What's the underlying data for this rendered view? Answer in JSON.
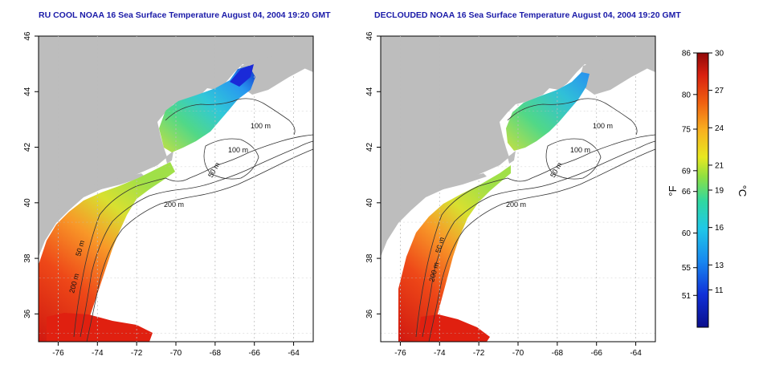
{
  "titles": {
    "left": "RU COOL NOAA 16 Sea Surface Temperature August 04, 2004 19:20 GMT",
    "right": "DECLOUDED NOAA 16 Sea Surface Temperature August 04, 2004 19:20 GMT"
  },
  "map": {
    "lon_ticks": [
      "-76",
      "-74",
      "-72",
      "-70",
      "-68",
      "-66",
      "-64"
    ],
    "lat_ticks": [
      "36",
      "38",
      "40",
      "42",
      "44",
      "46"
    ],
    "lon_range": [
      -77,
      -63
    ],
    "lat_range": [
      35,
      46
    ],
    "contour_labels": [
      "100 m",
      "100 m",
      "50 m",
      "200 m",
      "50 m",
      "200 m"
    ],
    "land_color": "#bdbdbd",
    "grid": "dotted"
  },
  "colorbar": {
    "fahrenheit_ticks": [
      "86",
      "80",
      "75",
      "69",
      "66",
      "60",
      "55",
      "51"
    ],
    "celsius_ticks": [
      "30",
      "27",
      "24",
      "21",
      "19",
      "16",
      "13",
      "11"
    ],
    "fahrenheit_unit": "°F",
    "celsius_unit": "°C",
    "range_c": [
      8,
      30
    ]
  },
  "colors": {
    "title": "#1a1aa8",
    "warm": "#d4200c",
    "cold": "#10128a"
  }
}
